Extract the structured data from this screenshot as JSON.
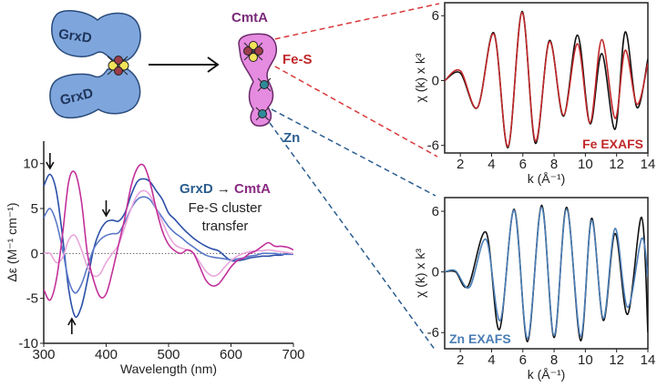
{
  "diagram": {
    "grxd_top_label": "GrxD",
    "grxd_bottom_label": "GrxD",
    "cmta_label": "CmtA",
    "fes_label": "Fe-S",
    "zn_label": "Zn",
    "colors": {
      "grxd": "#7ea6dd",
      "cmta": "#e58be0",
      "fe": "#c0282a",
      "zn": "#2a5d8f",
      "cmta_text": "#7a2a7a"
    }
  },
  "chart_data": [
    {
      "type": "line",
      "xlabel": "Wavelength (nm)",
      "ylabel": "Δε (M⁻¹ cm⁻¹)",
      "xlim": [
        300,
        700
      ],
      "ylim": [
        -10,
        12.5
      ],
      "xticks": [
        300,
        400,
        500,
        600,
        700
      ],
      "yticks": [
        -10,
        -5,
        0,
        5,
        10
      ],
      "zero_line": "dotted",
      "annotation": {
        "line1_a": "GrxD",
        "line1_arrow": "→",
        "line1_b": "CmtA",
        "line2": "Fe-S cluster",
        "line3": "transfer"
      },
      "arrows": [
        {
          "x": 310,
          "direction": "down"
        },
        {
          "x": 400,
          "direction": "down"
        },
        {
          "x": 345,
          "direction": "up"
        }
      ],
      "x": [
        300,
        310,
        320,
        330,
        340,
        350,
        360,
        370,
        380,
        390,
        400,
        410,
        420,
        430,
        440,
        450,
        460,
        470,
        480,
        490,
        500,
        510,
        520,
        530,
        540,
        550,
        560,
        570,
        580,
        590,
        600,
        610,
        620,
        630,
        640,
        650,
        660,
        670,
        680,
        690,
        700
      ],
      "series": [
        {
          "color": "#2b4fa8",
          "values": [
            7.5,
            8.8,
            7,
            2,
            -4,
            -7,
            -6,
            -3,
            0.5,
            2.5,
            3.5,
            3.7,
            3.6,
            4.5,
            6.5,
            8,
            8.3,
            8,
            7,
            6,
            4.5,
            3.8,
            3,
            2.3,
            1.7,
            1.2,
            0.8,
            0.5,
            0.3,
            -0.3,
            -0.8,
            -0.8,
            -0.7,
            -0.5,
            -0.4,
            -0.3,
            -0.3,
            -0.2,
            -0.2,
            0,
            0
          ]
        },
        {
          "color": "#5a78c8",
          "values": [
            4,
            5,
            3.5,
            0.5,
            -3,
            -4.4,
            -3.5,
            -1.5,
            0.5,
            1.5,
            2,
            2.2,
            2.3,
            3.5,
            5,
            6,
            6.3,
            6,
            5,
            4,
            3,
            2.3,
            1.8,
            1.2,
            0.7,
            0.2,
            -0.2,
            -0.4,
            -0.5,
            -0.6,
            -0.7,
            -0.6,
            -0.5,
            -0.3,
            -0.2,
            0,
            0,
            0,
            -0.1,
            -0.1,
            -0.1
          ]
        },
        {
          "color": "#e9a6dc",
          "values": [
            0,
            0,
            -1,
            -0.5,
            1.5,
            2,
            0.5,
            -1.5,
            -2.5,
            -2.3,
            -1,
            0,
            1,
            3,
            5,
            6.5,
            7,
            6.5,
            5,
            3.5,
            2,
            1,
            0.6,
            0.4,
            0,
            -1,
            -2,
            -2.5,
            -2.3,
            -1.5,
            -0.8,
            -0.3,
            0,
            0.2,
            0.3,
            0.3,
            0.4,
            0.3,
            0.2,
            0.1,
            0
          ]
        },
        {
          "color": "#c2309a",
          "values": [
            -4,
            -5.2,
            -3,
            2,
            8,
            9,
            6,
            0,
            -3,
            -4.8,
            -4.5,
            -2,
            1,
            4,
            7.5,
            9.5,
            9.8,
            8,
            5,
            2.5,
            1,
            0.3,
            0,
            0.4,
            0,
            -1.5,
            -3,
            -3.6,
            -3.4,
            -2.5,
            -1.5,
            -0.8,
            -0.5,
            0,
            0.3,
            0.8,
            1.2,
            0.8,
            0.8,
            0.7,
            0.4
          ]
        }
      ]
    },
    {
      "type": "line",
      "xlabel": "k (Å⁻¹)",
      "ylabel": "χ (k) x k³",
      "label": "Fe EXAFS",
      "xlim": [
        1,
        14
      ],
      "ylim": [
        -6.7,
        7.2
      ],
      "xticks": [
        2,
        4,
        6,
        8,
        10,
        12,
        14
      ],
      "yticks": [
        -6,
        0,
        6
      ],
      "series": [
        {
          "role": "data",
          "color": "#111111",
          "points": [
            [
              1,
              0
            ],
            [
              2,
              0.7
            ],
            [
              3.1,
              -2.5
            ],
            [
              4.15,
              4.4
            ],
            [
              5.05,
              -6.2
            ],
            [
              5.95,
              6.4
            ],
            [
              6.8,
              -5.8
            ],
            [
              7.7,
              3.7
            ],
            [
              8.6,
              -3.3
            ],
            [
              9.5,
              4.2
            ],
            [
              10.3,
              -4
            ],
            [
              11.05,
              2.5
            ],
            [
              11.9,
              -4.5
            ],
            [
              12.55,
              4.5
            ],
            [
              13.3,
              -2.5
            ],
            [
              14,
              2
            ]
          ]
        },
        {
          "role": "fit",
          "color": "#c0282a",
          "points": [
            [
              1,
              0
            ],
            [
              2,
              0.9
            ],
            [
              3.1,
              -2.5
            ],
            [
              4.15,
              4.3
            ],
            [
              5.05,
              -6.1
            ],
            [
              5.95,
              6.3
            ],
            [
              6.8,
              -5.6
            ],
            [
              7.7,
              3.6
            ],
            [
              8.6,
              -3.2
            ],
            [
              9.5,
              3.4
            ],
            [
              10.3,
              -3.9
            ],
            [
              11.05,
              3.8
            ],
            [
              11.9,
              -3.5
            ],
            [
              12.55,
              2.8
            ],
            [
              13.3,
              -2.2
            ],
            [
              14,
              1.6
            ]
          ]
        }
      ]
    },
    {
      "type": "line",
      "xlabel": "k (Å⁻¹)",
      "ylabel": "χ (k) x k³",
      "label": "Zn EXAFS",
      "xlim": [
        1,
        14
      ],
      "ylim": [
        -7.6,
        7.35
      ],
      "xticks": [
        2,
        4,
        6,
        8,
        10,
        12,
        14
      ],
      "yticks": [
        -6,
        0,
        6
      ],
      "series": [
        {
          "role": "data",
          "color": "#111111",
          "points": [
            [
              1,
              0
            ],
            [
              1.7,
              0
            ],
            [
              2.5,
              -1.4
            ],
            [
              3.65,
              3.9
            ],
            [
              4.5,
              -5.7
            ],
            [
              5.45,
              6.2
            ],
            [
              6.3,
              -6.9
            ],
            [
              7.2,
              6.6
            ],
            [
              8,
              -6.5
            ],
            [
              8.8,
              6.4
            ],
            [
              9.7,
              -6.8
            ],
            [
              10.4,
              5.3
            ],
            [
              11.15,
              -4.8
            ],
            [
              11.9,
              3.8
            ],
            [
              12.7,
              -4.2
            ],
            [
              13.6,
              5.4
            ],
            [
              14,
              -6
            ]
          ]
        },
        {
          "role": "fit",
          "color": "#4a7db5",
          "points": [
            [
              1,
              0
            ],
            [
              1.7,
              0.1
            ],
            [
              2.6,
              -1.5
            ],
            [
              3.65,
              3.2
            ],
            [
              4.55,
              -4.8
            ],
            [
              5.45,
              6.1
            ],
            [
              6.3,
              -6.6
            ],
            [
              7.2,
              6.4
            ],
            [
              8,
              -6.3
            ],
            [
              8.8,
              6.2
            ],
            [
              9.7,
              -6.4
            ],
            [
              10.4,
              5.1
            ],
            [
              11.15,
              -4.6
            ],
            [
              11.9,
              4.3
            ],
            [
              12.7,
              -3.5
            ],
            [
              13.6,
              3.3
            ],
            [
              14,
              -0.5
            ]
          ]
        }
      ]
    }
  ]
}
